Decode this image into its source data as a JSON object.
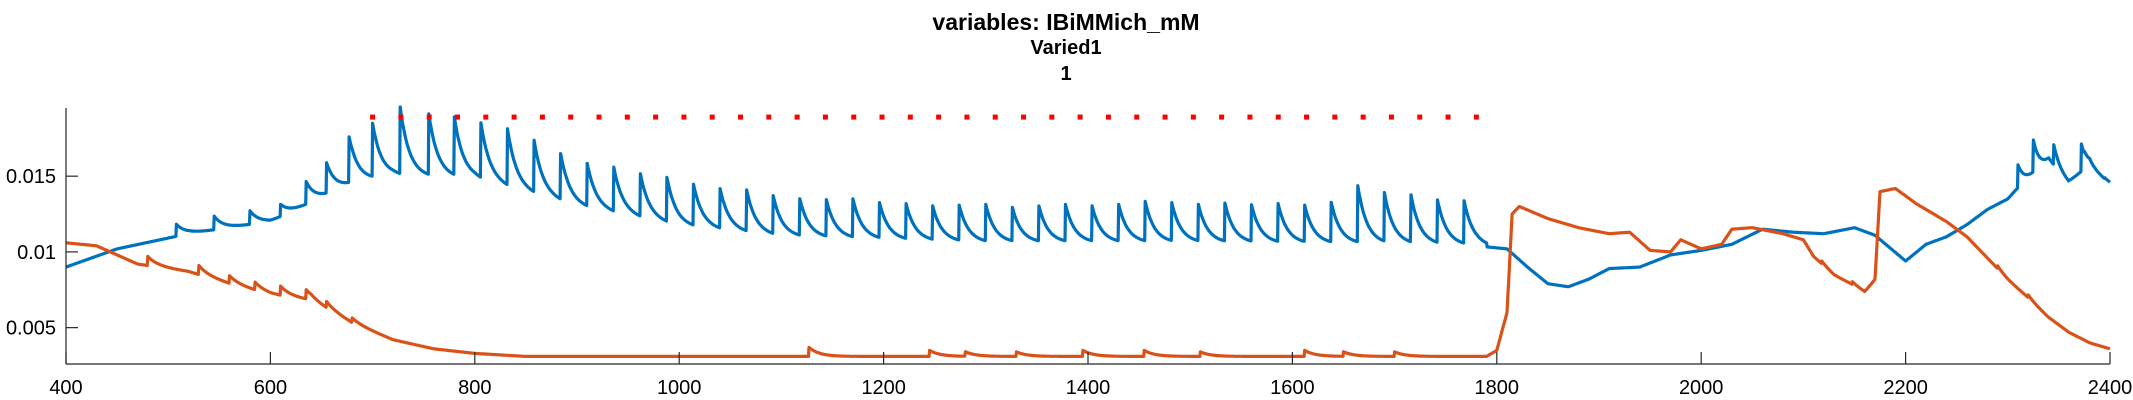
{
  "chart_data": {
    "type": "line",
    "title_lines": [
      "variables: IBiMMich_mM",
      "Varied1",
      "1"
    ],
    "xlabel": "",
    "ylabel": "",
    "xlim": [
      400,
      2400
    ],
    "ylim": [
      0.0026,
      0.0195
    ],
    "x_ticks": [
      400,
      600,
      800,
      1000,
      1200,
      1400,
      1600,
      1800,
      2000,
      2200,
      2400
    ],
    "x_tick_labels": [
      "400",
      "600",
      "800",
      "1000",
      "1200",
      "1400",
      "1600",
      "1800",
      "2000",
      "2200",
      "2400"
    ],
    "y_ticks": [
      0.005,
      0.01,
      0.015
    ],
    "y_tick_labels": [
      "0.005",
      "0.01",
      "0.015"
    ],
    "grid": false,
    "colors": {
      "blue": "#0072BD",
      "orange": "#D95319",
      "red": "#FF0000"
    },
    "stimulus": {
      "x_start": 700,
      "x_end": 1780,
      "count": 40,
      "y": 0.0189
    },
    "series": [
      {
        "color": "blue",
        "baseline": [
          [
            400,
            0.009
          ],
          [
            450,
            0.0102
          ],
          [
            520,
            0.0112
          ],
          [
            600,
            0.012
          ],
          [
            680,
            0.0145
          ],
          [
            720,
            0.015
          ],
          [
            800,
            0.0148
          ],
          [
            900,
            0.013
          ],
          [
            1000,
            0.0117
          ],
          [
            1100,
            0.011
          ],
          [
            1300,
            0.0106
          ],
          [
            1500,
            0.0106
          ],
          [
            1700,
            0.0105
          ],
          [
            1780,
            0.0104
          ]
        ],
        "spikes": {
          "times": [
            508,
            545,
            580,
            610,
            635,
            655,
            677,
            700,
            727,
            755,
            780,
            806,
            832,
            858,
            884,
            910,
            936,
            962,
            988,
            1014,
            1040,
            1066,
            1092,
            1118,
            1144,
            1170,
            1196,
            1222,
            1248,
            1274,
            1300,
            1326,
            1352,
            1378,
            1404,
            1430,
            1456,
            1482,
            1508,
            1534,
            1560,
            1586,
            1612,
            1638,
            1664,
            1690,
            1716,
            1742,
            1768
          ],
          "amps": [
            0.0008,
            0.0009,
            0.0009,
            0.0008,
            0.0015,
            0.002,
            0.003,
            0.0035,
            0.0044,
            0.004,
            0.0038,
            0.0036,
            0.0037,
            0.0034,
            0.003,
            0.0028,
            0.0029,
            0.0028,
            0.0029,
            0.0027,
            0.0026,
            0.0027,
            0.0025,
            0.0024,
            0.0024,
            0.0025,
            0.0023,
            0.0023,
            0.0022,
            0.0023,
            0.0024,
            0.0022,
            0.0023,
            0.0024,
            0.0023,
            0.0024,
            0.0026,
            0.0025,
            0.0024,
            0.0025,
            0.0024,
            0.0025,
            0.0024,
            0.0026,
            0.0037,
            0.0032,
            0.0031,
            0.0028,
            0.0028
          ],
          "decay": 9
        },
        "tail": [
          [
            1780,
            0.0104
          ],
          [
            1810,
            0.0102
          ],
          [
            1830,
            0.009
          ],
          [
            1850,
            0.0079
          ],
          [
            1870,
            0.0077
          ],
          [
            1890,
            0.0082
          ],
          [
            1910,
            0.0089
          ],
          [
            1940,
            0.009
          ],
          [
            1970,
            0.0098
          ],
          [
            2000,
            0.0101
          ],
          [
            2030,
            0.0105
          ],
          [
            2060,
            0.0115
          ],
          [
            2090,
            0.0113
          ],
          [
            2120,
            0.0112
          ],
          [
            2150,
            0.0116
          ],
          [
            2170,
            0.0111
          ],
          [
            2200,
            0.0094
          ],
          [
            2220,
            0.0105
          ],
          [
            2240,
            0.011
          ],
          [
            2260,
            0.0118
          ],
          [
            2280,
            0.0128
          ],
          [
            2300,
            0.0135
          ],
          [
            2320,
            0.015
          ],
          [
            2340,
            0.0165
          ],
          [
            2360,
            0.015
          ],
          [
            2380,
            0.016
          ],
          [
            2400,
            0.0148
          ]
        ],
        "tail_spikes": [
          [
            2310,
            0.0025
          ],
          [
            2325,
            0.0035
          ],
          [
            2345,
            0.0022
          ],
          [
            2372,
            0.003
          ]
        ]
      },
      {
        "color": "orange",
        "baseline": [
          [
            400,
            0.0106
          ],
          [
            430,
            0.0104
          ],
          [
            470,
            0.0092
          ],
          [
            520,
            0.0087
          ],
          [
            560,
            0.0079
          ],
          [
            600,
            0.0072
          ],
          [
            640,
            0.0068
          ],
          [
            680,
            0.0053
          ],
          [
            720,
            0.0042
          ],
          [
            760,
            0.0036
          ],
          [
            800,
            0.0033
          ],
          [
            850,
            0.0031
          ],
          [
            900,
            0.0031
          ],
          [
            1000,
            0.0031
          ],
          [
            1200,
            0.0031
          ],
          [
            1400,
            0.0031
          ],
          [
            1600,
            0.0031
          ],
          [
            1790,
            0.0031
          ]
        ],
        "spikes": {
          "times": [
            480,
            530,
            560,
            585,
            610,
            635,
            655,
            680,
            1127,
            1245,
            1280,
            1330,
            1395,
            1455,
            1510,
            1612,
            1650,
            1700
          ],
          "amps": [
            0.0006,
            0.0006,
            0.0005,
            0.0005,
            0.0006,
            0.0006,
            0.0004,
            0.0003,
            0.0006,
            0.0004,
            0.0003,
            0.0003,
            0.0004,
            0.0004,
            0.0003,
            0.0004,
            0.0003,
            0.0003
          ],
          "decay": 10
        },
        "tail": [
          [
            1790,
            0.0031
          ],
          [
            1800,
            0.0035
          ],
          [
            1810,
            0.006
          ],
          [
            1815,
            0.0125
          ],
          [
            1822,
            0.013
          ],
          [
            1850,
            0.0122
          ],
          [
            1880,
            0.0116
          ],
          [
            1910,
            0.0112
          ],
          [
            1930,
            0.0113
          ],
          [
            1950,
            0.0101
          ],
          [
            1970,
            0.01
          ],
          [
            1980,
            0.0108
          ],
          [
            2000,
            0.0102
          ],
          [
            2020,
            0.0105
          ],
          [
            2030,
            0.0115
          ],
          [
            2050,
            0.0116
          ],
          [
            2080,
            0.0112
          ],
          [
            2100,
            0.0108
          ],
          [
            2110,
            0.0097
          ],
          [
            2130,
            0.0085
          ],
          [
            2150,
            0.0078
          ],
          [
            2160,
            0.0074
          ],
          [
            2170,
            0.0082
          ],
          [
            2175,
            0.014
          ],
          [
            2190,
            0.0142
          ],
          [
            2210,
            0.0132
          ],
          [
            2240,
            0.012
          ],
          [
            2260,
            0.011
          ],
          [
            2280,
            0.0096
          ],
          [
            2300,
            0.0082
          ],
          [
            2320,
            0.007
          ],
          [
            2340,
            0.0057
          ],
          [
            2360,
            0.0047
          ],
          [
            2380,
            0.004
          ],
          [
            2400,
            0.0036
          ]
        ],
        "tail_spikes": [
          [
            2118,
            0.0003
          ],
          [
            2148,
            0.0003
          ],
          [
            2290,
            0.0003
          ],
          [
            2320,
            0.0003
          ]
        ]
      }
    ]
  }
}
